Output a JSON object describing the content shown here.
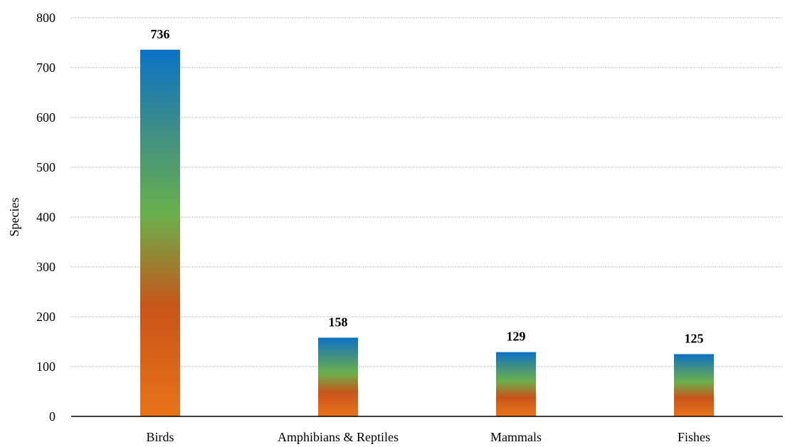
{
  "chart_data": {
    "type": "bar",
    "title": "",
    "xlabel": "",
    "ylabel": "Species",
    "categories": [
      "Birds",
      "Amphibians & Reptiles",
      "Mammals",
      "Fishes"
    ],
    "values": [
      736,
      158,
      129,
      125
    ],
    "ylim": [
      0,
      800
    ],
    "yticks": [
      0,
      100,
      200,
      300,
      400,
      500,
      600,
      700,
      800
    ],
    "grid": true,
    "legend": "none",
    "bar_gradient": [
      "#e8731a",
      "#c8551a",
      "#6ab04c",
      "#3e8e86",
      "#0b72c7"
    ]
  }
}
